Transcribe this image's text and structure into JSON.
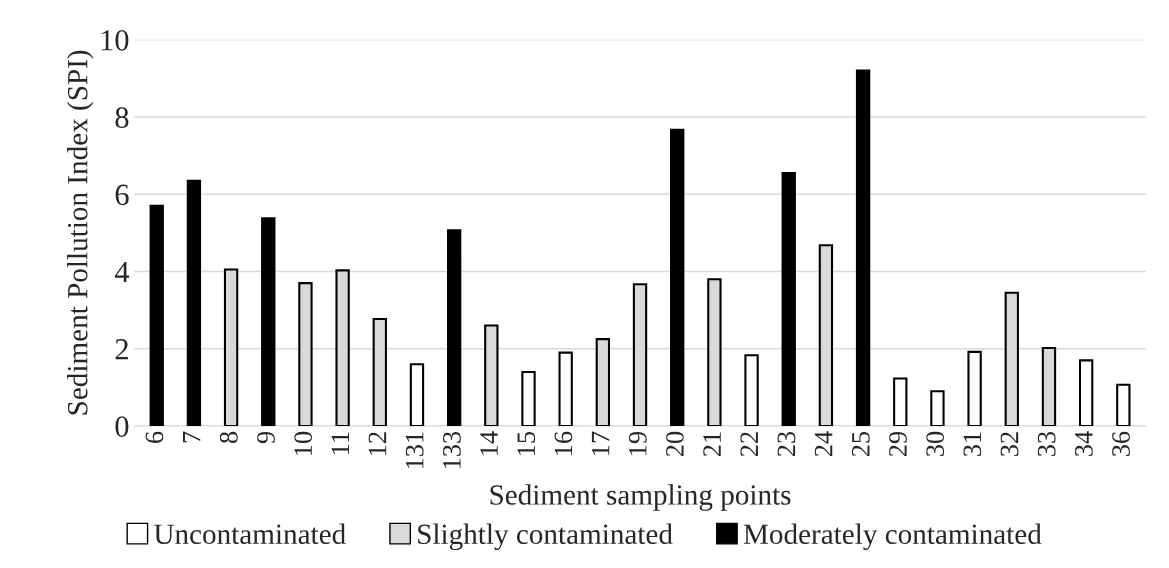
{
  "chart_data": {
    "type": "bar",
    "xlabel": "Sediment sampling points",
    "ylabel": "Sediment Pollution Index (SPI)",
    "categories": [
      "6",
      "7",
      "8",
      "9",
      "10",
      "11",
      "12",
      "131",
      "133",
      "14",
      "15",
      "16",
      "17",
      "19",
      "20",
      "21",
      "22",
      "23",
      "24",
      "25",
      "29",
      "30",
      "31",
      "32",
      "33",
      "34",
      "36"
    ],
    "series": [
      {
        "name": "Uncontaminated",
        "color": "#ffffff",
        "values": [
          null,
          null,
          null,
          null,
          null,
          null,
          null,
          1.6,
          null,
          null,
          1.4,
          1.9,
          null,
          null,
          null,
          null,
          1.83,
          null,
          null,
          null,
          1.23,
          0.9,
          1.92,
          null,
          null,
          1.7,
          1.07
        ]
      },
      {
        "name": "Slightly contaminated",
        "color": "#d9d9d9",
        "values": [
          null,
          null,
          4.05,
          null,
          3.7,
          4.03,
          2.77,
          null,
          null,
          2.6,
          null,
          null,
          2.25,
          3.67,
          null,
          3.8,
          null,
          null,
          4.68,
          null,
          null,
          null,
          null,
          3.45,
          2.02,
          null,
          null
        ]
      },
      {
        "name": "Moderately contaminated",
        "color": "#000000",
        "values": [
          5.7,
          6.35,
          null,
          5.38,
          null,
          null,
          null,
          null,
          5.07,
          null,
          null,
          null,
          null,
          null,
          7.67,
          null,
          null,
          6.55,
          null,
          9.2,
          null,
          null,
          null,
          null,
          null,
          null,
          null
        ]
      }
    ],
    "ylim": [
      0,
      10
    ],
    "yticks": [
      0,
      2,
      4,
      6,
      8,
      10
    ],
    "grid": "y",
    "legend": "bottom"
  }
}
